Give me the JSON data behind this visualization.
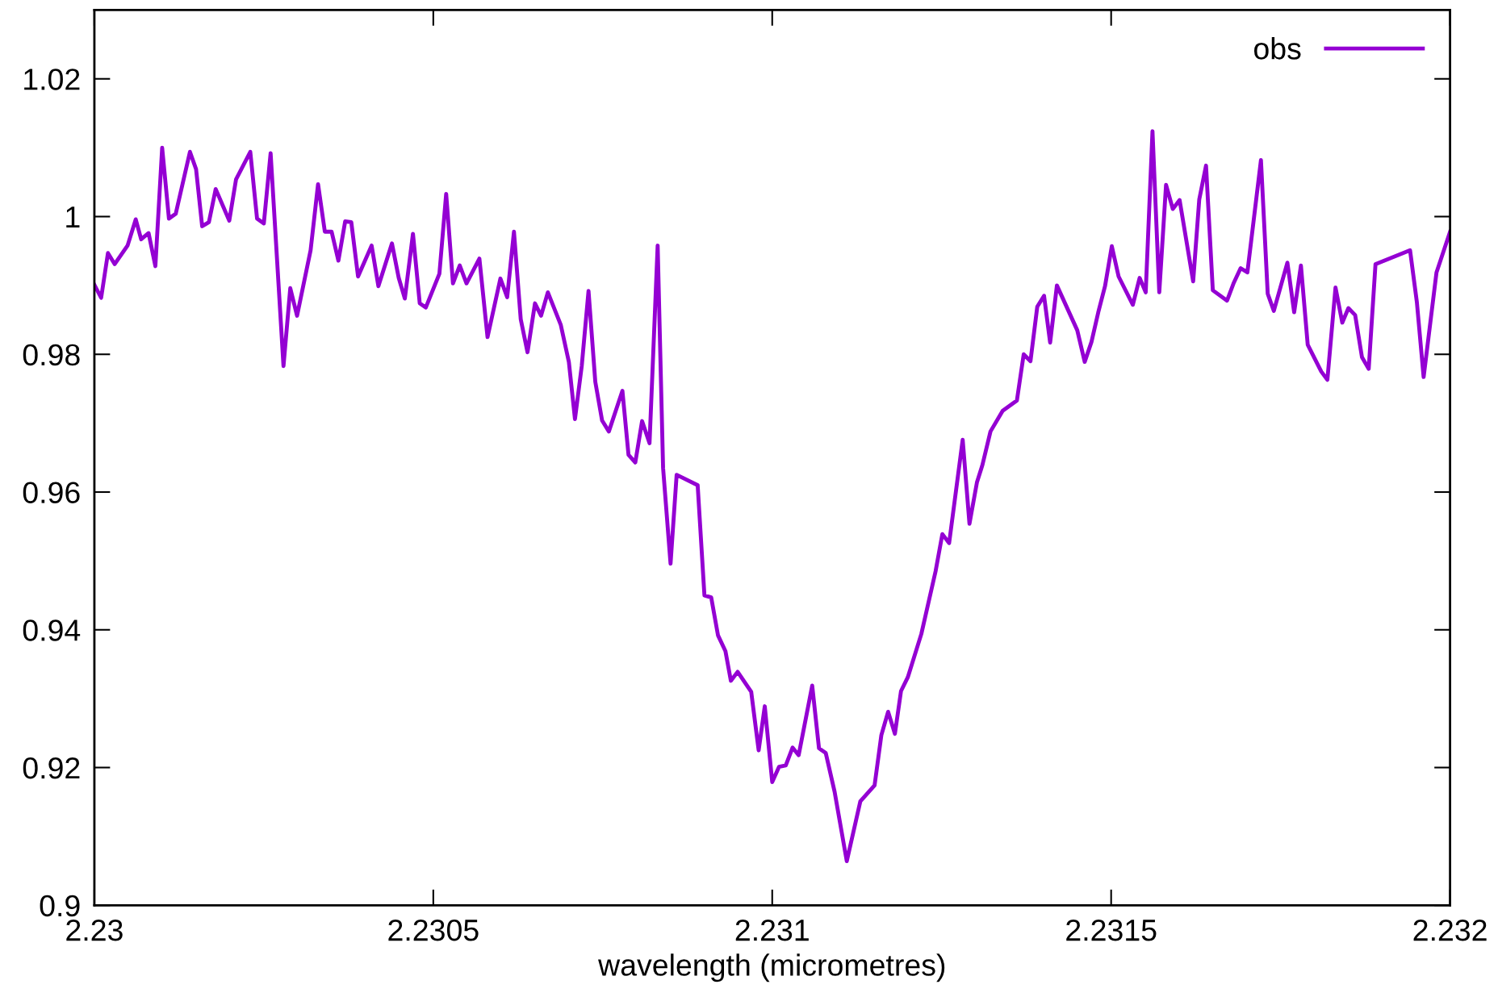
{
  "chart_data": {
    "type": "line",
    "xlabel": "wavelength (micrometres)",
    "xlim": [
      2.23,
      2.232
    ],
    "ylim": [
      0.9,
      1.03
    ],
    "xticks": [
      2.23,
      2.2305,
      2.231,
      2.2315,
      2.232
    ],
    "yticks": [
      0.9,
      0.92,
      0.94,
      0.96,
      0.98,
      1,
      1.02
    ],
    "grid": false,
    "legend": "top right",
    "marker": "none",
    "line_style": "solid",
    "series": [
      {
        "name": "obs",
        "color": "#9400d3",
        "x": [
          2.23,
          2.23001,
          2.23002,
          2.23003,
          2.230049,
          2.230061,
          2.230069,
          2.23008,
          2.23009,
          2.2301,
          2.23011,
          2.23012,
          2.230141,
          2.23015,
          2.230159,
          2.230169,
          2.230179,
          2.230199,
          2.230209,
          2.23023,
          2.23024,
          2.23025,
          2.23026,
          2.230279,
          2.230289,
          2.230299,
          2.230319,
          2.23033,
          2.23034,
          2.23035,
          2.23036,
          2.23037,
          2.230379,
          2.230389,
          2.230409,
          2.230419,
          2.230439,
          2.230449,
          2.230458,
          2.23047,
          2.23048,
          2.230489,
          2.230509,
          2.230519,
          2.230529,
          2.230539,
          2.230549,
          2.230568,
          2.23058,
          2.230599,
          2.230609,
          2.230619,
          2.230629,
          2.230639,
          2.23065,
          2.230659,
          2.230669,
          2.230688,
          2.2307,
          2.230709,
          2.230719,
          2.230729,
          2.230739,
          2.230749,
          2.230759,
          2.230779,
          2.230788,
          2.230798,
          2.230808,
          2.230819,
          2.230831,
          2.230839,
          2.23085,
          2.230859,
          2.23089,
          2.2309,
          2.23091,
          2.23092,
          2.230931,
          2.230939,
          2.230949,
          2.230969,
          2.23098,
          2.230989,
          2.231,
          2.23101,
          2.23102,
          2.23103,
          2.231039,
          2.231059,
          2.231069,
          2.231079,
          2.231092,
          2.23111,
          2.23113,
          2.231151,
          2.231161,
          2.231171,
          2.231181,
          2.23119,
          2.2312,
          2.23122,
          2.231241,
          2.231251,
          2.231261,
          2.231281,
          2.231291,
          2.231302,
          2.23131,
          2.231322,
          2.23134,
          2.231361,
          2.231371,
          2.231381,
          2.231391,
          2.231401,
          2.23141,
          2.23142,
          2.23145,
          2.231461,
          2.231471,
          2.231481,
          2.231491,
          2.231501,
          2.231511,
          2.231532,
          2.231542,
          2.231551,
          2.231561,
          2.231571,
          2.231581,
          2.231591,
          2.231601,
          2.231621,
          2.23163,
          2.23164,
          2.23165,
          2.231671,
          2.231681,
          2.231691,
          2.231701,
          2.231721,
          2.231731,
          2.23174,
          2.23176,
          2.23177,
          2.23178,
          2.23179,
          2.23181,
          2.231819,
          2.231831,
          2.231841,
          2.23185,
          2.23186,
          2.23187,
          2.23188,
          2.23189,
          2.231941,
          2.231951,
          2.231961,
          2.23198,
          2.232
        ],
        "values": [
          0.9901,
          0.9882,
          0.9947,
          0.9931,
          0.9958,
          0.9996,
          0.9967,
          0.9976,
          0.9928,
          1.01,
          0.9997,
          1.0004,
          1.0094,
          1.0069,
          0.9986,
          0.9992,
          1.004,
          0.9994,
          1.0054,
          1.0094,
          0.9997,
          0.999,
          1.0092,
          0.9783,
          0.9896,
          0.9856,
          0.9951,
          1.0047,
          0.9978,
          0.9978,
          0.9936,
          0.9993,
          0.9992,
          0.9913,
          0.9958,
          0.9899,
          0.9961,
          0.9911,
          0.9881,
          0.9975,
          0.9874,
          0.9868,
          0.9917,
          1.0033,
          0.9903,
          0.9929,
          0.9903,
          0.9939,
          0.9825,
          0.991,
          0.9883,
          0.9978,
          0.9851,
          0.9803,
          0.9874,
          0.9856,
          0.989,
          0.9843,
          0.9789,
          0.9706,
          0.9783,
          0.9892,
          0.976,
          0.9704,
          0.9688,
          0.9747,
          0.9654,
          0.9643,
          0.9703,
          0.9671,
          0.9958,
          0.9635,
          0.9496,
          0.9625,
          0.961,
          0.945,
          0.9447,
          0.9392,
          0.9369,
          0.9326,
          0.9339,
          0.931,
          0.9225,
          0.9289,
          0.9179,
          0.9201,
          0.9203,
          0.9229,
          0.9218,
          0.9319,
          0.9228,
          0.9221,
          0.9165,
          0.9064,
          0.9151,
          0.9174,
          0.9247,
          0.9281,
          0.9249,
          0.9311,
          0.9331,
          0.9394,
          0.9485,
          0.9539,
          0.9526,
          0.9676,
          0.9554,
          0.9614,
          0.9639,
          0.9688,
          0.9718,
          0.9733,
          0.98,
          0.979,
          0.9869,
          0.9885,
          0.9817,
          0.99,
          0.9835,
          0.9789,
          0.9818,
          0.9861,
          0.9899,
          0.9957,
          0.9913,
          0.9872,
          0.9911,
          0.989,
          1.0124,
          0.989,
          1.0046,
          1.0011,
          1.0024,
          0.9906,
          1.0025,
          1.0074,
          0.9893,
          0.9878,
          0.9904,
          0.9925,
          0.9919,
          1.0082,
          0.9888,
          0.9863,
          0.9933,
          0.9861,
          0.9929,
          0.9814,
          0.9775,
          0.9763,
          0.9897,
          0.9846,
          0.9867,
          0.9857,
          0.9796,
          0.9779,
          0.9931,
          0.9951,
          0.9876,
          0.9767,
          0.9919,
          0.9978
        ]
      }
    ]
  }
}
